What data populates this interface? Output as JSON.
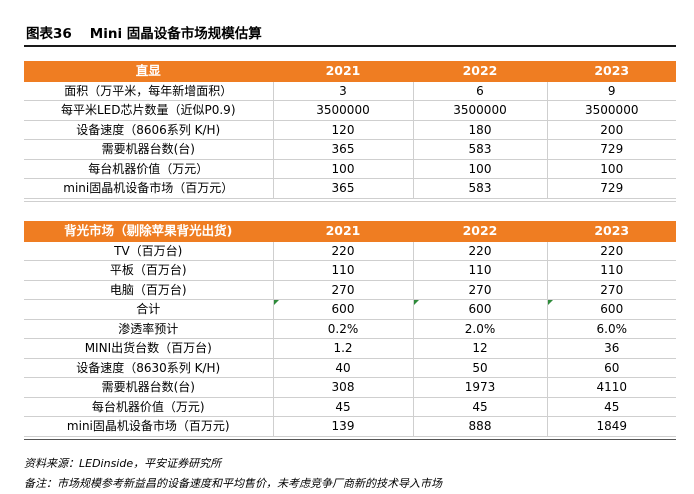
{
  "title": {
    "number": "图表36",
    "text": "Mini 固晶设备市场规模估算"
  },
  "table1": {
    "header": [
      "直显",
      "2021",
      "2022",
      "2023"
    ],
    "rows": [
      [
        "面积（万平米，每年新增面积）",
        "3",
        "6",
        "9"
      ],
      [
        "每平米LED芯片数量（近似P0.9)",
        "3500000",
        "3500000",
        "3500000"
      ],
      [
        "设备速度（8606系列 K/H)",
        "120",
        "180",
        "200"
      ],
      [
        "需要机器台数(台)",
        "365",
        "583",
        "729"
      ],
      [
        "每台机器价值（万元）",
        "100",
        "100",
        "100"
      ],
      [
        "mini固晶机设备市场（百万元）",
        "365",
        "583",
        "729"
      ]
    ]
  },
  "table2": {
    "header": [
      "背光市场（剔除苹果背光出货)",
      "2021",
      "2022",
      "2023"
    ],
    "rows": [
      [
        "TV（百万台)",
        "220",
        "220",
        "220"
      ],
      [
        "平板（百万台)",
        "110",
        "110",
        "110"
      ],
      [
        "电脑（百万台)",
        "270",
        "270",
        "270"
      ],
      [
        "合计",
        "600",
        "600",
        "600"
      ],
      [
        "渗透率预计",
        "0.2%",
        "2.0%",
        "6.0%"
      ],
      [
        "MINI出货台数（百万台)",
        "1.2",
        "12",
        "36"
      ],
      [
        "设备速度（8630系列 K/H)",
        "40",
        "50",
        "60"
      ],
      [
        "需要机器台数(台)",
        "308",
        "1973",
        "4110"
      ],
      [
        "每台机器价值（万元)",
        "45",
        "45",
        "45"
      ],
      [
        "mini固晶机设备市场（百万元)",
        "139",
        "888",
        "1849"
      ]
    ]
  },
  "footer": {
    "source": "资料来源：LEDinside，平安证券研究所",
    "remark": "备注：市场规模参考新益昌的设备速度和平均售价，未考虑竞争厂商新的技术导入市场"
  },
  "colors": {
    "header_bg": "#ef7d22",
    "header_text": "#ffffff",
    "marker": "#2e8b3a"
  }
}
